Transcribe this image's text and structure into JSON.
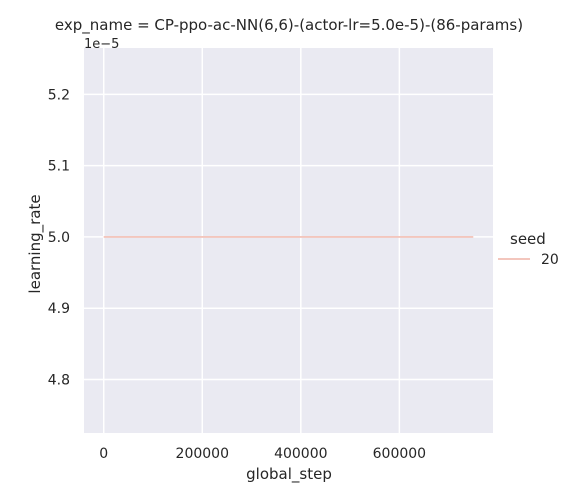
{
  "chart_data": {
    "type": "line",
    "title": "exp_name = CP-ppo-ac-NN(6,6)-(actor-lr=5.0e-5)-(86-params)",
    "xlabel": "global_step",
    "ylabel": "learning_rate",
    "y_offset_label": "1e−5",
    "xlim": [
      -40000,
      790000
    ],
    "ylim": [
      4.725,
      5.265
    ],
    "y_scale_factor": 1e-05,
    "x_ticks": [
      0,
      200000,
      400000,
      600000
    ],
    "x_tick_labels": [
      "0",
      "200000",
      "400000",
      "600000"
    ],
    "y_ticks": [
      4.8,
      4.9,
      5.0,
      5.1,
      5.2
    ],
    "y_tick_labels": [
      "4.8",
      "4.9",
      "5.0",
      "5.1",
      "5.2"
    ],
    "grid": true,
    "legend_title": "seed",
    "legend_placement": "right",
    "series": [
      {
        "name": "20",
        "color": "#f3c6bd",
        "x": [
          0,
          750000
        ],
        "y": [
          5.0,
          5.0
        ]
      }
    ]
  },
  "style": {
    "plot_background": "#eaeaf2",
    "grid_color": "#ffffff",
    "text_color": "#262626"
  }
}
